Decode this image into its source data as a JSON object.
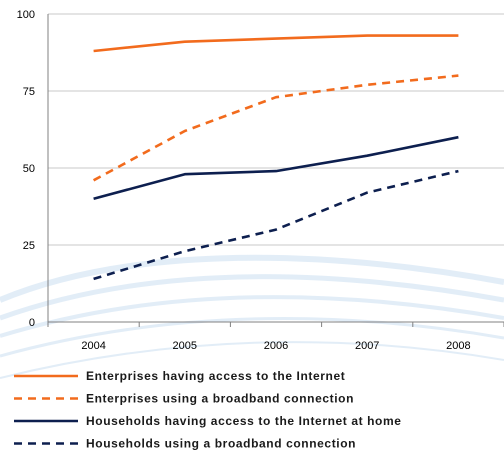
{
  "chart_data": {
    "type": "line",
    "title": "",
    "xlabel": "",
    "ylabel": "",
    "categories": [
      "2004",
      "2005",
      "2006",
      "2007",
      "2008"
    ],
    "ylim": [
      0,
      100
    ],
    "yticks": [
      "0",
      "25",
      "50",
      "75",
      "100"
    ],
    "grid": true,
    "legend_position": "bottom",
    "series": [
      {
        "name": "Enterprises having access to the Internet",
        "values": [
          88,
          91,
          92,
          93,
          93
        ],
        "color": "#F26B1D",
        "dash": "solid"
      },
      {
        "name": "Enterprises using a broadband connection",
        "values": [
          46,
          62,
          73,
          77,
          80
        ],
        "color": "#F26B1D",
        "dash": "dashed"
      },
      {
        "name": "Households having access to the Internet at home",
        "values": [
          40,
          48,
          49,
          54,
          60
        ],
        "color": "#0D1F4F",
        "dash": "solid"
      },
      {
        "name": "Households using a broadband connection",
        "values": [
          14,
          23,
          30,
          42,
          49
        ],
        "color": "#0D1F4F",
        "dash": "dashed"
      }
    ]
  }
}
